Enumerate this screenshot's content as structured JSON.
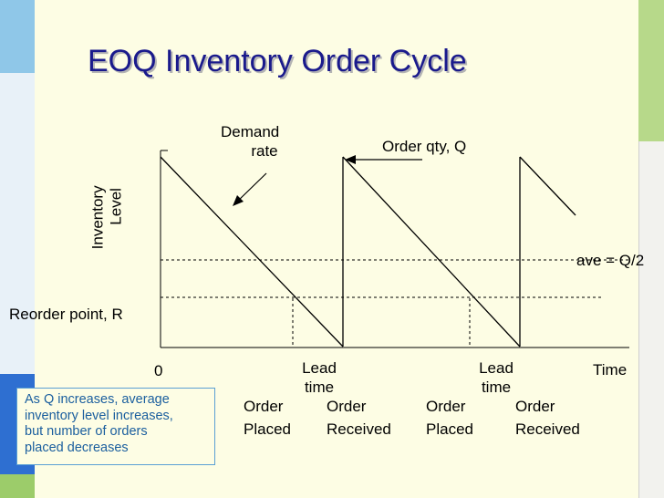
{
  "slide": {
    "title": "EOQ Inventory Order Cycle"
  },
  "diagram": {
    "y_axis_label_line1": "Inventory",
    "y_axis_label_line2": "Level",
    "x_axis_label": "Time",
    "origin_label": "0",
    "demand_rate_line1": "Demand",
    "demand_rate_line2": "rate",
    "order_qty_label": "Order qty, Q",
    "average_label": "ave = Q/2",
    "reorder_point_label": "Reorder point, R",
    "lead_time_line1": "Lead",
    "lead_time_line2": "time",
    "order_placed_line1": "Order",
    "order_placed_line2": "Placed",
    "order_received_line1": "Order",
    "order_received_line2": "Received"
  },
  "note": {
    "line1": "As Q increases, average",
    "line2": "inventory level increases,",
    "line3": "but number of orders",
    "line4": "placed decreases"
  },
  "colors": {
    "title": "#1a1a8c",
    "slide_background": "#fdfde4",
    "note_text": "#1a5e9e",
    "deco_blue": "#2e6fd1",
    "deco_green": "#b7d98a"
  }
}
